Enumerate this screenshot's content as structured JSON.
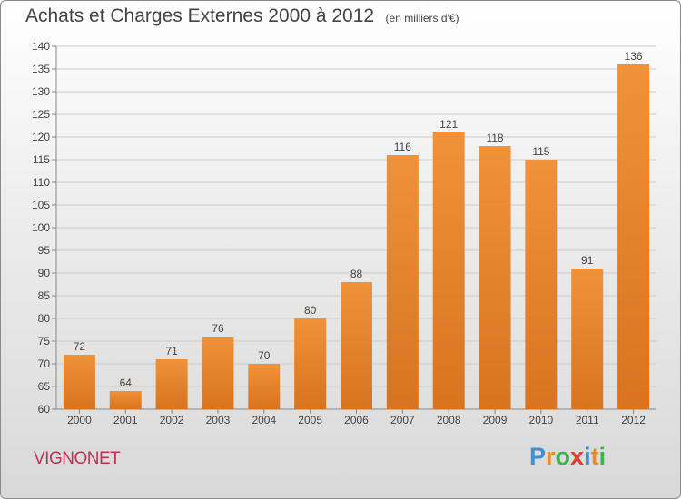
{
  "title": "Achats et Charges Externes 2000 à 2012",
  "subtitle": "(en milliers d'€)",
  "commune": "VIGNONET",
  "logo": {
    "letters": [
      "P",
      "r",
      "o",
      "x",
      "i",
      "t",
      "i"
    ],
    "colors": [
      "#3d8fd6",
      "#f08a1c",
      "#3cb54a",
      "#e33b2e",
      "#3d8fd6",
      "#f08a1c",
      "#3cb54a"
    ]
  },
  "colors": {
    "bar": "#f0923a",
    "bar_dark": "#d9731f",
    "label": "#444444",
    "grid": "#cccccc"
  },
  "chart_data": {
    "type": "bar",
    "categories": [
      "2000",
      "2001",
      "2002",
      "2003",
      "2004",
      "2005",
      "2006",
      "2007",
      "2008",
      "2009",
      "2010",
      "2011",
      "2012"
    ],
    "values": [
      72,
      64,
      71,
      76,
      70,
      80,
      88,
      116,
      121,
      118,
      115,
      91,
      136
    ],
    "ylim": [
      60,
      140
    ],
    "yticks": [
      60,
      65,
      70,
      75,
      80,
      85,
      90,
      95,
      100,
      105,
      110,
      115,
      120,
      125,
      130,
      135,
      140
    ],
    "grid": true
  }
}
